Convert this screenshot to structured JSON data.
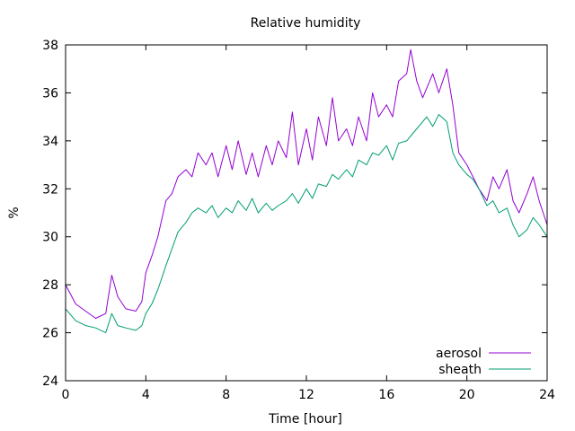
{
  "chart_data": {
    "type": "line",
    "title": "Relative humidity",
    "xlabel": "Time [hour]",
    "ylabel": "%",
    "xlim": [
      0,
      24
    ],
    "ylim": [
      24,
      38
    ],
    "xticks": [
      0,
      4,
      8,
      12,
      16,
      20,
      24
    ],
    "yticks": [
      24,
      26,
      28,
      30,
      32,
      34,
      36,
      38
    ],
    "grid": false,
    "legend_position": "bottom-right",
    "series": [
      {
        "name": "aerosol",
        "color": "#9400d3",
        "x": [
          0,
          0.5,
          1,
          1.5,
          2,
          2.3,
          2.6,
          3,
          3.5,
          3.8,
          4,
          4.3,
          4.6,
          5,
          5.3,
          5.6,
          6,
          6.3,
          6.6,
          7,
          7.3,
          7.6,
          8,
          8.3,
          8.6,
          9,
          9.3,
          9.6,
          10,
          10.3,
          10.6,
          11,
          11.3,
          11.6,
          12,
          12.3,
          12.6,
          13,
          13.3,
          13.6,
          14,
          14.3,
          14.6,
          15,
          15.3,
          15.6,
          16,
          16.3,
          16.6,
          17,
          17.2,
          17.5,
          17.8,
          18,
          18.3,
          18.6,
          19,
          19.3,
          19.6,
          20,
          20.3,
          20.6,
          21,
          21.3,
          21.6,
          22,
          22.3,
          22.6,
          23,
          23.3,
          23.6,
          24
        ],
        "values": [
          28.0,
          27.2,
          26.9,
          26.6,
          26.8,
          28.4,
          27.5,
          27.0,
          26.9,
          27.3,
          28.5,
          29.2,
          30.0,
          31.5,
          31.8,
          32.5,
          32.8,
          32.5,
          33.5,
          33.0,
          33.5,
          32.5,
          33.8,
          32.8,
          34.0,
          32.6,
          33.5,
          32.5,
          33.8,
          33.0,
          34.0,
          33.3,
          35.2,
          33.0,
          34.5,
          33.2,
          35.0,
          33.8,
          35.8,
          34.0,
          34.5,
          33.8,
          35.0,
          34.0,
          36.0,
          35.0,
          35.5,
          35.0,
          36.5,
          36.8,
          37.8,
          36.5,
          35.8,
          36.2,
          36.8,
          36.0,
          37.0,
          35.5,
          33.5,
          33.0,
          32.5,
          32.0,
          31.5,
          32.5,
          32.0,
          32.8,
          31.5,
          31.0,
          31.8,
          32.5,
          31.5,
          30.5
        ]
      },
      {
        "name": "sheath",
        "color": "#009e73",
        "x": [
          0,
          0.5,
          1,
          1.5,
          2,
          2.3,
          2.6,
          3,
          3.5,
          3.8,
          4,
          4.3,
          4.6,
          5,
          5.3,
          5.6,
          6,
          6.3,
          6.6,
          7,
          7.3,
          7.6,
          8,
          8.3,
          8.6,
          9,
          9.3,
          9.6,
          10,
          10.3,
          10.6,
          11,
          11.3,
          11.6,
          12,
          12.3,
          12.6,
          13,
          13.3,
          13.6,
          14,
          14.3,
          14.6,
          15,
          15.3,
          15.6,
          16,
          16.3,
          16.6,
          17,
          17.2,
          17.5,
          17.8,
          18,
          18.3,
          18.6,
          19,
          19.3,
          19.6,
          20,
          20.3,
          20.6,
          21,
          21.3,
          21.6,
          22,
          22.3,
          22.6,
          23,
          23.3,
          23.6,
          24
        ],
        "values": [
          27.0,
          26.5,
          26.3,
          26.2,
          26.0,
          26.8,
          26.3,
          26.2,
          26.1,
          26.3,
          26.8,
          27.2,
          27.8,
          28.8,
          29.5,
          30.2,
          30.6,
          31.0,
          31.2,
          31.0,
          31.3,
          30.8,
          31.2,
          31.0,
          31.5,
          31.1,
          31.6,
          31.0,
          31.4,
          31.1,
          31.3,
          31.5,
          31.8,
          31.4,
          32.0,
          31.6,
          32.2,
          32.1,
          32.6,
          32.4,
          32.8,
          32.5,
          33.2,
          33.0,
          33.5,
          33.4,
          33.8,
          33.2,
          33.9,
          34.0,
          34.2,
          34.5,
          34.8,
          35.0,
          34.6,
          35.1,
          34.8,
          33.5,
          33.0,
          32.6,
          32.4,
          32.0,
          31.3,
          31.5,
          31.0,
          31.2,
          30.5,
          30.0,
          30.3,
          30.8,
          30.5,
          30.0
        ]
      }
    ]
  }
}
